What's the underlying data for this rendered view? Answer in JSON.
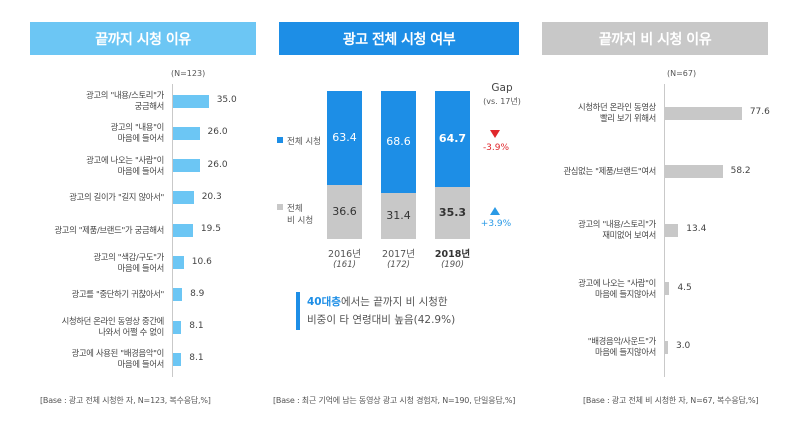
{
  "headers": {
    "left": "끝까지 시청 이유",
    "middle": "광고 전체 시청 여부",
    "right": "끝까지 비 시청 이유"
  },
  "left_panel": {
    "n_label": "(N=123)",
    "base": "[Base : 광고 전체 시청한 자, N=123, 복수응답,%]"
  },
  "middle_panel": {
    "legend_full": "전체 시청",
    "legend_partial_line1": "전체",
    "legend_partial_line2": "비 시청",
    "gap_title": "Gap",
    "gap_sub": "(vs. 17년)",
    "gap_full": "-3.9%",
    "gap_partial": "+3.9%",
    "callout_highlight": "40대층",
    "callout_rest_line1": "에서는 끝까지 비 시청한",
    "callout_line2": "비중이 타 연령대비 높음(42.9%)",
    "base": "[Base : 최근 기억에 남는 동영상 광고 시청 경험자, N=190, 단일응답,%]"
  },
  "right_panel": {
    "n_label": "(N=67)",
    "base": "[Base : 광고 전체 비 시청한 자, N=67, 복수응답,%]"
  },
  "colors": {
    "light_blue": "#6cc6f4",
    "blue": "#1d8ee6",
    "gray": "#c8c8c8",
    "gap_down": "#e0272c",
    "gap_up": "#2a9ae6"
  },
  "chart_data": [
    {
      "type": "bar",
      "orientation": "horizontal",
      "title": "끝까지 시청 이유",
      "categories": [
        [
          "광고의 \"내용/스토리\"가",
          "궁금해서"
        ],
        [
          "광고의 \"내용\"이",
          "마음에 들어서"
        ],
        [
          "광고에 나오는 \"사람\"이",
          "마음에 들어서"
        ],
        [
          "광고의 길이가 \"길지 않아서\""
        ],
        [
          "광고의 \"제품/브랜드\"가 궁금해서"
        ],
        [
          "광고의 \"색감/구도\"가",
          "마음에 들어서"
        ],
        [
          "광고를 \"중단하기 귀찮아서\""
        ],
        [
          "시청하던 온라인 동영상 중간에",
          "나와서 어쩔 수 없이"
        ],
        [
          "광고에 사용된 \"배경음악\"이",
          "마음에 들어서"
        ]
      ],
      "values": [
        35.0,
        26.0,
        26.0,
        20.3,
        19.5,
        10.6,
        8.9,
        8.1,
        8.1
      ],
      "value_labels": [
        "35.0",
        "26.0",
        "26.0",
        "20.3",
        "19.5",
        "10.6",
        "8.9",
        "8.1",
        "8.1"
      ],
      "color": "#6cc6f4"
    },
    {
      "type": "bar",
      "stacked": true,
      "title": "광고 전체 시청 여부",
      "categories": [
        "2016년",
        "2017년",
        "2018년"
      ],
      "category_n": [
        "(161)",
        "(172)",
        "(190)"
      ],
      "series": [
        {
          "name": "전체 시청",
          "values": [
            63.4,
            68.6,
            64.7
          ],
          "labels": [
            "63.4",
            "68.6",
            "64.7"
          ],
          "color": "#1d8ee6"
        },
        {
          "name": "전체 비 시청",
          "values": [
            36.6,
            31.4,
            35.3
          ],
          "labels": [
            "36.6",
            "31.4",
            "35.3"
          ],
          "color": "#c8c8c8"
        }
      ],
      "gap": {
        "전체 시청": "-3.9%",
        "전체 비 시청": "+3.9%"
      },
      "ylim": [
        0,
        100
      ]
    },
    {
      "type": "bar",
      "orientation": "horizontal",
      "title": "끝까지 비 시청 이유",
      "categories": [
        [
          "시청하던 온라인 동영상",
          "빨리 보기 위해서"
        ],
        [
          "관심없는 \"제품/브랜드\"여서"
        ],
        [
          "광고의 \"내용/스토리\"가",
          "재미없어 보여서"
        ],
        [
          "광고에 나오는 \"사람\"이",
          "마음에 들지않아서"
        ],
        [
          "\"배경음악/사운드\"가",
          "마음에 들지않아서"
        ]
      ],
      "values": [
        77.6,
        58.2,
        13.4,
        4.5,
        3.0
      ],
      "value_labels": [
        "77.6",
        "58.2",
        "13.4",
        "4.5",
        "3.0"
      ],
      "color": "#c8c8c8"
    }
  ]
}
